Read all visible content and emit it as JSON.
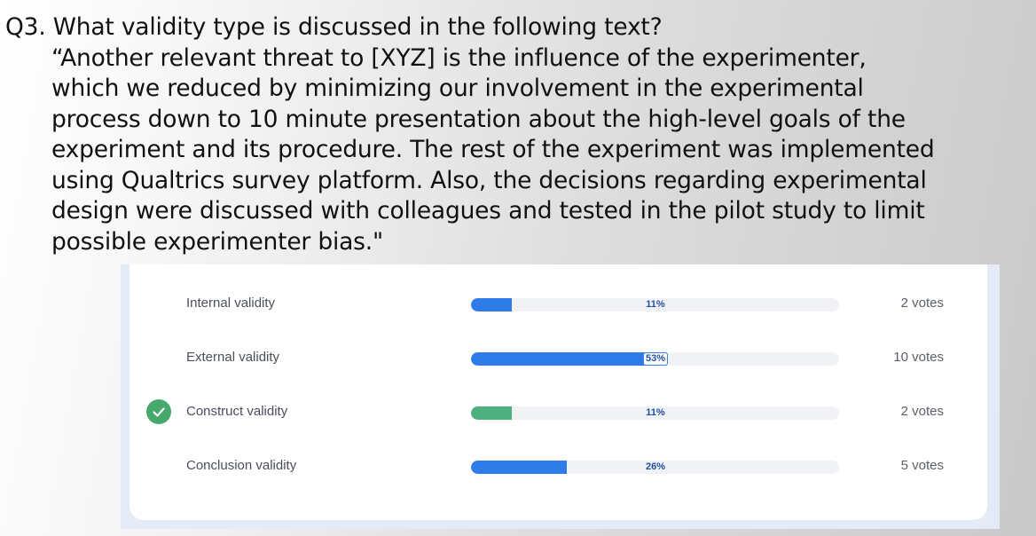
{
  "question": {
    "title": "Q3. What validity type is discussed in the following text?",
    "quote_lines": [
      "“Another relevant threat to [XYZ] is the influence of the experimenter,",
      "which we reduced by minimizing our involvement in the experimental",
      "process down to 10 minute presentation about the high-level goals of the",
      "experiment and its procedure. The rest of the experiment was implemented",
      "using Qualtrics survey platform. Also, the decisions regarding experimental",
      "design were discussed with colleagues and tested in the pilot study to limit",
      "possible experimenter bias.\""
    ]
  },
  "poll": {
    "options": [
      {
        "label": "Internal validity",
        "percent": "11%",
        "share": 0.11,
        "votes": "2 votes",
        "correct": false,
        "bar_color": "#2f7be8"
      },
      {
        "label": "External validity",
        "percent": "53%",
        "share": 0.53,
        "votes": "10 votes",
        "correct": false,
        "bar_color": "#2f7be8"
      },
      {
        "label": "Construct validity",
        "percent": "11%",
        "share": 0.11,
        "votes": "2 votes",
        "correct": true,
        "bar_color": "#4fb07f"
      },
      {
        "label": "Conclusion validity",
        "percent": "26%",
        "share": 0.26,
        "votes": "5 votes",
        "correct": false,
        "bar_color": "#2f7be8"
      }
    ]
  },
  "colors": {
    "correct_badge": "#47a86c",
    "track": "#f0f2f6",
    "percent_text": "#1f4fa3"
  },
  "icons": {
    "correct": "check-icon"
  }
}
